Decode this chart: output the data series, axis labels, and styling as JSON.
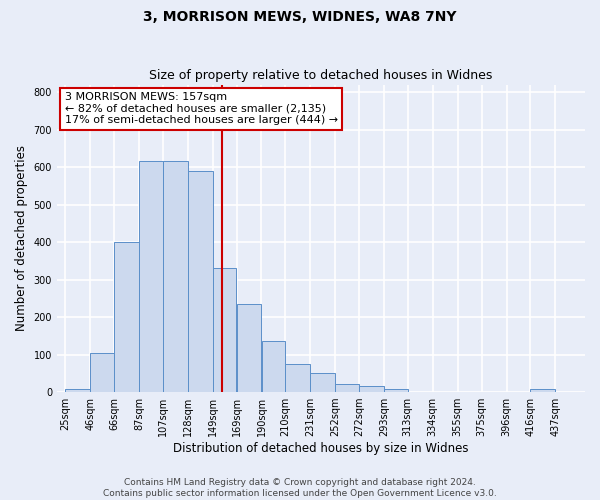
{
  "title": "3, MORRISON MEWS, WIDNES, WA8 7NY",
  "subtitle": "Size of property relative to detached houses in Widnes",
  "xlabel": "Distribution of detached houses by size in Widnes",
  "ylabel": "Number of detached properties",
  "bar_left_edges": [
    25,
    46,
    66,
    87,
    107,
    128,
    149,
    169,
    190,
    210,
    231,
    252,
    272,
    293,
    313,
    334,
    355,
    375,
    396,
    416
  ],
  "bar_widths": [
    21,
    20,
    21,
    20,
    21,
    21,
    20,
    21,
    20,
    21,
    21,
    20,
    21,
    20,
    21,
    21,
    20,
    21,
    20,
    21
  ],
  "bar_heights": [
    8,
    105,
    400,
    615,
    615,
    590,
    330,
    235,
    135,
    75,
    52,
    22,
    15,
    8,
    0,
    0,
    0,
    0,
    0,
    8
  ],
  "bar_color": "#ccd9ee",
  "bar_edge_color": "#5b8fc9",
  "background_color": "#e8edf8",
  "grid_color": "#ffffff",
  "vline_x": 157,
  "vline_color": "#cc0000",
  "annotation_text": "3 MORRISON MEWS: 157sqm\n← 82% of detached houses are smaller (2,135)\n17% of semi-detached houses are larger (444) →",
  "annotation_box_facecolor": "#ffffff",
  "annotation_box_edgecolor": "#cc0000",
  "ylim": [
    0,
    820
  ],
  "xlim": [
    18,
    462
  ],
  "yticks": [
    0,
    100,
    200,
    300,
    400,
    500,
    600,
    700,
    800
  ],
  "xtick_labels": [
    "25sqm",
    "46sqm",
    "66sqm",
    "87sqm",
    "107sqm",
    "128sqm",
    "149sqm",
    "169sqm",
    "190sqm",
    "210sqm",
    "231sqm",
    "252sqm",
    "272sqm",
    "293sqm",
    "313sqm",
    "334sqm",
    "355sqm",
    "375sqm",
    "396sqm",
    "416sqm",
    "437sqm"
  ],
  "xtick_positions": [
    25,
    46,
    66,
    87,
    107,
    128,
    149,
    169,
    190,
    210,
    231,
    252,
    272,
    293,
    313,
    334,
    355,
    375,
    396,
    416,
    437
  ],
  "footer_text": "Contains HM Land Registry data © Crown copyright and database right 2024.\nContains public sector information licensed under the Open Government Licence v3.0.",
  "title_fontsize": 10,
  "subtitle_fontsize": 9,
  "axis_label_fontsize": 8.5,
  "tick_fontsize": 7,
  "annotation_fontsize": 8,
  "footer_fontsize": 6.5
}
